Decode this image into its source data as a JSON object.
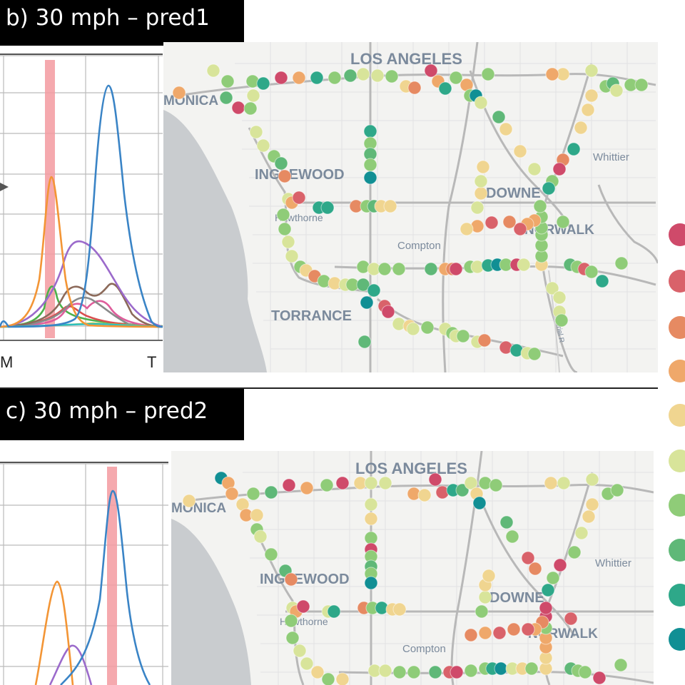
{
  "panels": {
    "b": {
      "title": "b) 30 mph – pred1",
      "x_tick_left": "M",
      "x_tick_right": "T"
    },
    "c": {
      "title": "c) 30 mph – pred2"
    }
  },
  "map": {
    "places": {
      "los_angeles": "LOS ANGELES",
      "monica": "MONICA",
      "whittier": "Whittier",
      "inglewood": "INGLEWOOD",
      "downey": "DOWNE",
      "hawthorne": "Hawthorne",
      "norwalk": "NORWALK",
      "compton": "Compton",
      "torrance": "TORRANCE",
      "river": "Gabriel R"
    }
  },
  "legend": {
    "colors": [
      "#cf4a6a",
      "#d9626a",
      "#e68a62",
      "#efa86a",
      "#f0d590",
      "#d8e49a",
      "#8fcc78",
      "#5fb878",
      "#2ea889",
      "#118f94"
    ]
  },
  "series_colors": [
    "#3a84c6",
    "#f39535",
    "#9b6acb",
    "#4db14b",
    "#8c6a5a",
    "#df5d9b",
    "#d94f4f",
    "#8a8a8a",
    "#c9c93a",
    "#2cbfbf"
  ]
}
